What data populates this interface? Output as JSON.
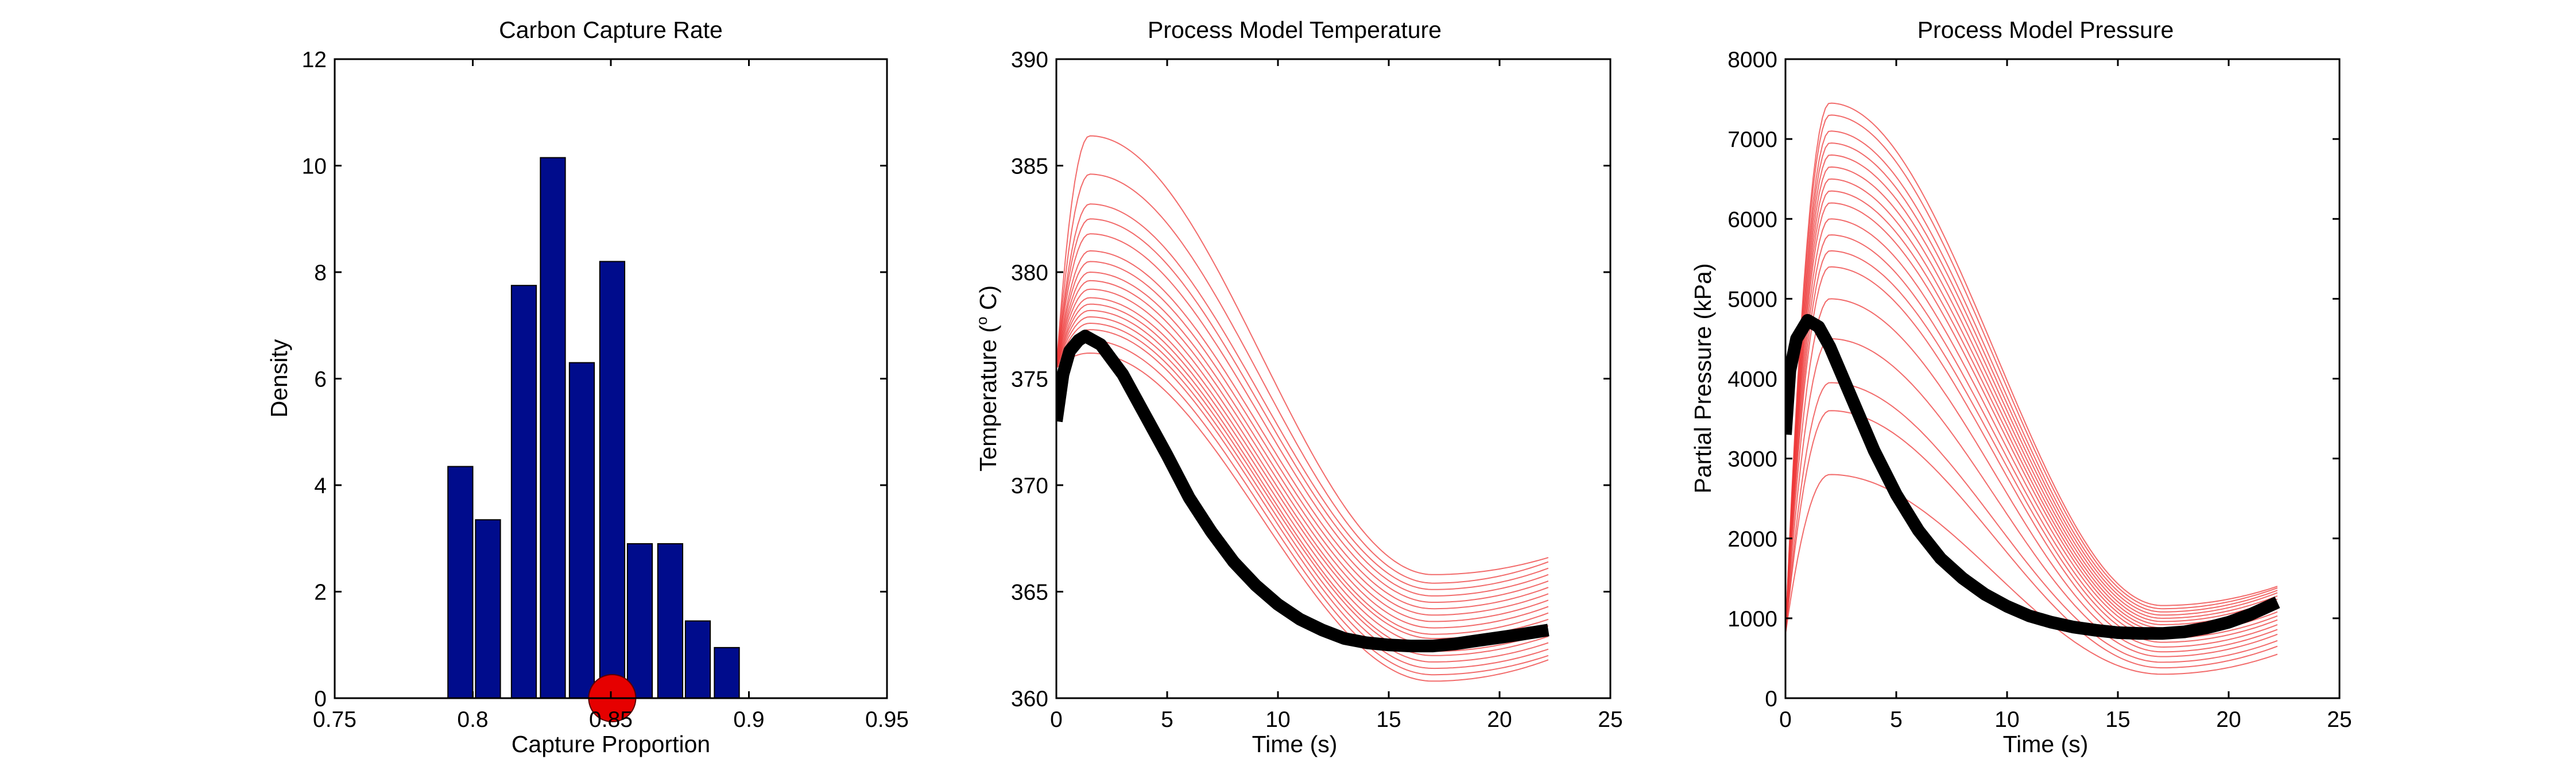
{
  "chart_data": [
    {
      "id": "capture",
      "type": "bar",
      "title": "Carbon Capture Rate",
      "xlabel": "Capture Proportion",
      "ylabel": "Density",
      "xlim": [
        0.75,
        0.95
      ],
      "ylim": [
        0,
        12
      ],
      "xticks": [
        0.75,
        0.8,
        0.85,
        0.9,
        0.95
      ],
      "xtick_labels": [
        "0.75",
        "0.8",
        "0.85",
        "0.9",
        "0.95"
      ],
      "yticks": [
        0,
        2,
        4,
        6,
        8,
        10,
        12
      ],
      "ytick_labels": [
        "0",
        "2",
        "4",
        "6",
        "8",
        "10",
        "12"
      ],
      "bar_width": 0.009,
      "bar_color": "#000c8c",
      "bars": [
        {
          "x": 0.7955,
          "value": 4.35
        },
        {
          "x": 0.8055,
          "value": 3.35
        },
        {
          "x": 0.8185,
          "value": 7.75
        },
        {
          "x": 0.829,
          "value": 10.15
        },
        {
          "x": 0.8395,
          "value": 6.3
        },
        {
          "x": 0.8505,
          "value": 8.2
        },
        {
          "x": 0.8605,
          "value": 2.9
        },
        {
          "x": 0.8715,
          "value": 2.9
        },
        {
          "x": 0.8815,
          "value": 1.45
        },
        {
          "x": 0.892,
          "value": 0.95
        }
      ],
      "marker": {
        "x": 0.8505,
        "y": 0,
        "color": "#e60000"
      }
    },
    {
      "id": "temperature",
      "type": "line",
      "title": "Process Model Temperature",
      "xlabel": "Time (s)",
      "ylabel": "Temperature (",
      "ylabel_sup": "o",
      "ylabel_end": " C)",
      "xlim": [
        0,
        25
      ],
      "ylim": [
        360,
        390
      ],
      "xticks": [
        0,
        5,
        10,
        15,
        20,
        25
      ],
      "xtick_labels": [
        "0",
        "5",
        "10",
        "15",
        "20",
        "25"
      ],
      "yticks": [
        360,
        365,
        370,
        375,
        380,
        385,
        390
      ],
      "ytick_labels": [
        "360",
        "365",
        "370",
        "375",
        "380",
        "385",
        "390"
      ],
      "x_end": 22.2,
      "ensemble_color": "#ee3a3a",
      "ensemble": {
        "start": 375.5,
        "peak_time": 1.5,
        "min_time": 17,
        "peaks": [
          376.2,
          376.8,
          377.3,
          377.6,
          377.9,
          378.2,
          378.5,
          378.8,
          379.2,
          379.6,
          380.0,
          380.5,
          381.0,
          381.8,
          382.5,
          383.2,
          384.6,
          386.4
        ],
        "mins": [
          360.8,
          361.1,
          361.4,
          361.7,
          362.0,
          362.2,
          362.5,
          362.8,
          363.0,
          363.3,
          363.6,
          363.9,
          364.2,
          364.5,
          364.8,
          365.1,
          365.4,
          365.8
        ],
        "ends": [
          361.8,
          362.0,
          362.3,
          362.6,
          362.9,
          363.1,
          363.4,
          363.7,
          364.0,
          364.3,
          364.6,
          364.9,
          365.2,
          365.5,
          365.8,
          366.1,
          366.4,
          366.6
        ]
      },
      "mean_line": {
        "color": "#000000",
        "points": [
          [
            0,
            373.0
          ],
          [
            0.3,
            375.2
          ],
          [
            0.6,
            376.3
          ],
          [
            1.0,
            376.8
          ],
          [
            1.3,
            377.0
          ],
          [
            2,
            376.6
          ],
          [
            3,
            375.2
          ],
          [
            4,
            373.3
          ],
          [
            5,
            371.4
          ],
          [
            6,
            369.4
          ],
          [
            7,
            367.8
          ],
          [
            8,
            366.4
          ],
          [
            9,
            365.3
          ],
          [
            10,
            364.4
          ],
          [
            11,
            363.7
          ],
          [
            12,
            363.2
          ],
          [
            13,
            362.8
          ],
          [
            14,
            362.6
          ],
          [
            15,
            362.5
          ],
          [
            16,
            362.45
          ],
          [
            17,
            362.45
          ],
          [
            18,
            362.55
          ],
          [
            19,
            362.7
          ],
          [
            20,
            362.85
          ],
          [
            21,
            363.0
          ],
          [
            22.2,
            363.2
          ]
        ]
      }
    },
    {
      "id": "pressure",
      "type": "line",
      "title": "Process Model Pressure",
      "xlabel": "Time (s)",
      "ylabel": "Partial Pressure (kPa)",
      "xlim": [
        0,
        25
      ],
      "ylim": [
        0,
        8000
      ],
      "xticks": [
        0,
        5,
        10,
        15,
        20,
        25
      ],
      "xtick_labels": [
        "0",
        "5",
        "10",
        "15",
        "20",
        "25"
      ],
      "yticks": [
        0,
        1000,
        2000,
        3000,
        4000,
        5000,
        6000,
        7000,
        8000
      ],
      "ytick_labels": [
        "0",
        "1000",
        "2000",
        "3000",
        "4000",
        "5000",
        "6000",
        "7000",
        "8000"
      ],
      "x_end": 22.2,
      "ensemble_color": "#ee3a3a",
      "ensemble": {
        "start": 800,
        "peak_time": 2.0,
        "min_time": 17,
        "peaks": [
          2800,
          3600,
          3950,
          4500,
          5000,
          5400,
          5600,
          5800,
          6000,
          6200,
          6350,
          6500,
          6650,
          6800,
          6950,
          7100,
          7300,
          7450
        ],
        "mins": [
          300,
          380,
          450,
          520,
          580,
          640,
          700,
          750,
          800,
          840,
          880,
          920,
          960,
          1000,
          1040,
          1080,
          1120,
          1160
        ],
        "ends": [
          550,
          650,
          720,
          800,
          860,
          920,
          980,
          1030,
          1080,
          1120,
          1160,
          1200,
          1240,
          1280,
          1320,
          1350,
          1380,
          1400
        ]
      },
      "mean_line": {
        "color": "#000000",
        "points": [
          [
            0,
            3300
          ],
          [
            0.2,
            4100
          ],
          [
            0.5,
            4500
          ],
          [
            1.0,
            4730
          ],
          [
            1.5,
            4650
          ],
          [
            2,
            4400
          ],
          [
            3,
            3750
          ],
          [
            4,
            3100
          ],
          [
            5,
            2550
          ],
          [
            6,
            2100
          ],
          [
            7,
            1750
          ],
          [
            8,
            1500
          ],
          [
            9,
            1300
          ],
          [
            10,
            1150
          ],
          [
            11,
            1030
          ],
          [
            12,
            950
          ],
          [
            13,
            890
          ],
          [
            14,
            850
          ],
          [
            15,
            820
          ],
          [
            16,
            810
          ],
          [
            17,
            810
          ],
          [
            18,
            830
          ],
          [
            19,
            880
          ],
          [
            20,
            950
          ],
          [
            21,
            1050
          ],
          [
            22.2,
            1200
          ]
        ]
      }
    }
  ]
}
